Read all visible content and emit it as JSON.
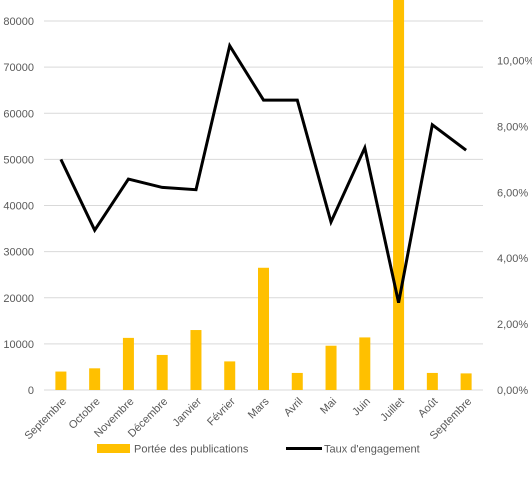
{
  "chart_data": {
    "type": "bar",
    "categories": [
      "Septembre",
      "Octobre",
      "Novembre",
      "Décembre",
      "Janvier",
      "Février",
      "Mars",
      "Avril",
      "Mai",
      "Juin",
      "Juillet",
      "Août",
      "Septembre"
    ],
    "series": [
      {
        "name": "Portée des publications",
        "type": "bar",
        "axis": "left",
        "color": "#FFC000",
        "values": [
          4000,
          4700,
          11300,
          7600,
          13000,
          6200,
          26500,
          3700,
          9600,
          11400,
          85000,
          3700,
          3600
        ]
      },
      {
        "name": "Taux d'engagement",
        "type": "line",
        "axis": "right",
        "color": "#000000",
        "values": [
          7.0,
          4.85,
          6.4,
          6.15,
          6.08,
          10.45,
          8.8,
          8.8,
          5.1,
          7.35,
          2.65,
          8.05,
          7.28
        ]
      }
    ],
    "y_left": {
      "ticks": [
        0,
        10000,
        20000,
        30000,
        40000,
        50000,
        60000,
        70000,
        80000
      ],
      "tick_labels": [
        "0",
        "10000",
        "20000",
        "30000",
        "40000",
        "50000",
        "60000",
        "70000",
        "80000"
      ],
      "ylim": [
        0,
        80000
      ]
    },
    "y_right": {
      "ticks": [
        0,
        2,
        4,
        6,
        8,
        10
      ],
      "tick_labels": [
        "0,00%",
        "2,00%",
        "4,00%",
        "6,00%",
        "8,00%",
        "10,00%"
      ],
      "ylim": [
        0,
        11.2
      ]
    },
    "grid": true,
    "legend": "bottom"
  }
}
